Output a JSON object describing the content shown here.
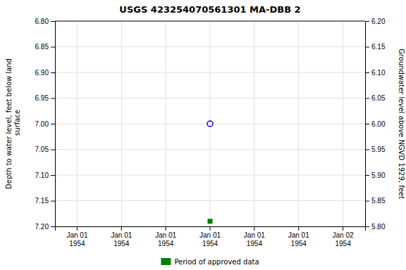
{
  "chart_data": {
    "type": "scatter",
    "title": "USGS 423254070561301 MA-DBB    2",
    "ylabel": "Depth to water level, feet below land\n surface",
    "y2label": "Groundwater level above NGVD 1929, feet",
    "categories": [
      "Jan 01\n1954",
      "Jan 01\n1954",
      "Jan 01\n1954",
      "Jan 01\n1954",
      "Jan 01\n1954",
      "Jan 01\n1954",
      "Jan 02\n1954"
    ],
    "series": [
      {
        "color": "blue",
        "marker": "circle-open",
        "values": [
          null,
          null,
          null,
          7.0,
          null,
          null,
          null
        ]
      },
      {
        "name": "Period of approved data",
        "color": "#008000",
        "marker": "square",
        "values": [
          null,
          null,
          null,
          7.19,
          null,
          null,
          null
        ]
      }
    ],
    "ylim": [
      7.2,
      6.8
    ],
    "yticks": [
      {
        "value": 6.8,
        "label": "6.80"
      },
      {
        "value": 6.85,
        "label": "6.85"
      },
      {
        "value": 6.9,
        "label": "6.90"
      },
      {
        "value": 6.95,
        "label": "6.95"
      },
      {
        "value": 7.0,
        "label": "7.00"
      },
      {
        "value": 7.05,
        "label": "7.05"
      },
      {
        "value": 7.1,
        "label": "7.10"
      },
      {
        "value": 7.15,
        "label": "7.15"
      },
      {
        "value": 7.2,
        "label": "7.20"
      }
    ],
    "y2lim": [
      5.8,
      6.2
    ],
    "y2ticks": [
      {
        "value": 6.2,
        "label": "6.20"
      },
      {
        "value": 6.15,
        "label": "6.15"
      },
      {
        "value": 6.1,
        "label": "6.10"
      },
      {
        "value": 6.05,
        "label": "6.05"
      },
      {
        "value": 6.0,
        "label": "6.00"
      },
      {
        "value": 5.95,
        "label": "5.95"
      },
      {
        "value": 5.9,
        "label": "5.90"
      },
      {
        "value": 5.85,
        "label": "5.85"
      },
      {
        "value": 5.8,
        "label": "5.80"
      }
    ],
    "grid": true,
    "legend": "bottom"
  }
}
